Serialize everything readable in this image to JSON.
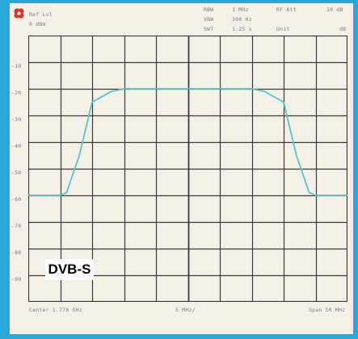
{
  "header": {
    "ref_line1": "Ref Lvl",
    "ref_line2": "0 dBm",
    "rbw_label": "RBW",
    "rbw_value": "1 MHz",
    "rf_att": "RF Att",
    "rf_att_value": "10 dB",
    "vbw_label": "VBW",
    "vbw_value": "300 Hz",
    "swt_label": "SWT",
    "swt_value": "1.25 s",
    "unit": "Unit",
    "unit_value": "dB"
  },
  "y_tick_labels": [
    "-10",
    "-20",
    "-30",
    "-40",
    "-50",
    "-60",
    "-70",
    "-80",
    "-90"
  ],
  "footer": {
    "center": "Center 1.778 GHz",
    "span_per_div": "5 MHz/",
    "span": "Span 50 MHz"
  },
  "overlay_label": "DVB-S",
  "colors": {
    "border": "#2aa7d9",
    "screen": "#f3f0e7",
    "trace": "#5bc3c8",
    "grid": "#3a3a3a",
    "marker": "#d9342b"
  },
  "chart_data": {
    "type": "line",
    "xlabel": "",
    "ylabel": "",
    "x": [
      -25,
      -20,
      -19,
      -17,
      -15,
      -12,
      -10,
      -5,
      0,
      5,
      10,
      12,
      15,
      17,
      19,
      20,
      25
    ],
    "series": [
      {
        "values": [
          -60,
          -60,
          -59,
          -45,
          -25,
          -21,
          -20,
          -20,
          -20,
          -20,
          -20,
          -21,
          -25,
          -45,
          -59,
          -60,
          -60
        ]
      }
    ],
    "xlim": [
      -25,
      25
    ],
    "ylim": [
      -100,
      0
    ],
    "grid": true
  }
}
